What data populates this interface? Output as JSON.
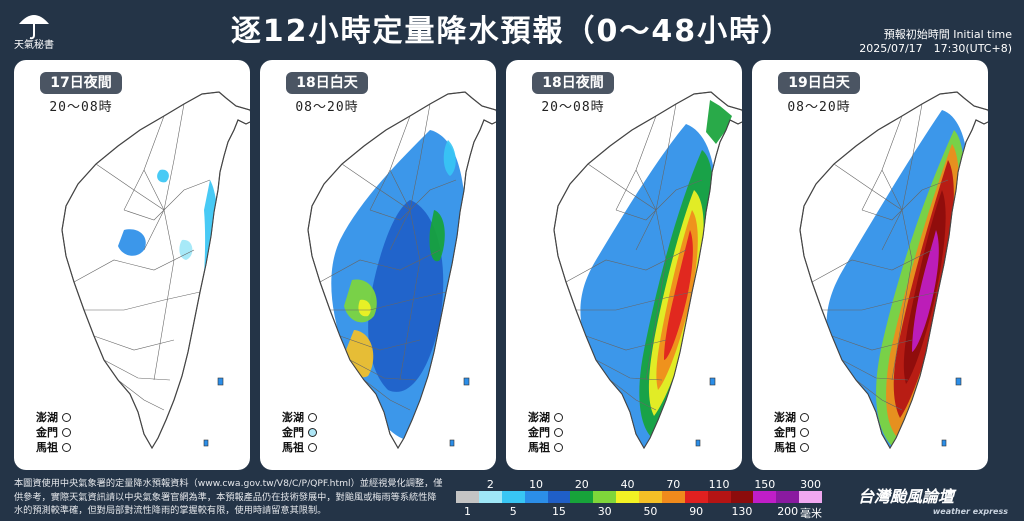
{
  "header": {
    "logo_text": "天氣秘書",
    "title": "逐12小時定量降水預報（0～48小時）",
    "init_label": "預報初始時間 Initial time",
    "init_time": "2025/07/17　17:30(UTC+8)"
  },
  "panels": [
    {
      "label": "17日夜間",
      "hours": "20～08時",
      "intensity": 0
    },
    {
      "label": "18日白天",
      "hours": "08～20時",
      "intensity": 1
    },
    {
      "label": "18日夜間",
      "hours": "20～08時",
      "intensity": 2
    },
    {
      "label": "19日白天",
      "hours": "08～20時",
      "intensity": 3
    }
  ],
  "islands": {
    "penghu": "澎湖",
    "kinmen": "金門",
    "matsu": "馬祖"
  },
  "footer": {
    "note": "本圖資使用中央氣象署的定量降水預報資料（www.cwa.gov.tw/V8/C/P/QPF.html）並經視覺化調整，僅供參考，實際天氣資訊請以中央氣象署官網為準，本預報產品仍在技術發展中，對颱風或梅雨等系統性降水的預測較準確，但對局部對流性降雨的掌握較有限，使用時請留意其限制。",
    "unit": "毫米",
    "brand": "台灣颱風論壇",
    "brand_sub": "weather express"
  },
  "legend": {
    "top_labels": [
      "2",
      "10",
      "20",
      "40",
      "70",
      "110",
      "150",
      "300"
    ],
    "bottom_labels": [
      "1",
      "5",
      "15",
      "30",
      "50",
      "90",
      "130",
      "200"
    ],
    "colors": [
      "#c4c4c4",
      "#9fe7f7",
      "#38c6f4",
      "#2b8ee8",
      "#1f5fc8",
      "#17a33a",
      "#7fd63a",
      "#f2f224",
      "#f5c026",
      "#f08a1c",
      "#e02020",
      "#b41414",
      "#8c0c0c",
      "#c01ec8",
      "#8a1aa0",
      "#f0a8f0"
    ]
  }
}
